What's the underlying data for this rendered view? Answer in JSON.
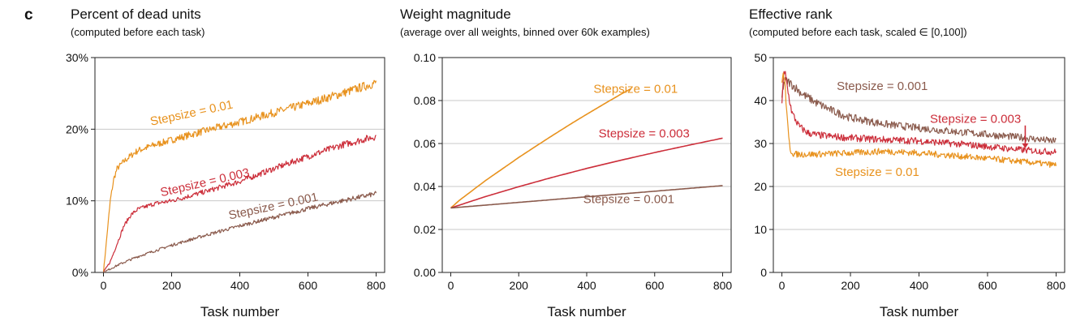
{
  "panel_letter": "c",
  "colors": {
    "stepsize_001": "#8a5a4c",
    "stepsize_003": "#cc2e3a",
    "stepsize_01": "#e8921e",
    "grid": "#c8c8c8",
    "axis": "#222222"
  },
  "chart_data": [
    {
      "type": "line",
      "title": "Percent of dead units",
      "subtitle": "(computed before each task)",
      "xlabel": "Task number",
      "ylabel": "",
      "xlim": [
        -25,
        825
      ],
      "ylim": [
        0,
        30
      ],
      "xticks": [
        0,
        200,
        400,
        600,
        800
      ],
      "yticks": [
        0,
        10,
        20,
        30
      ],
      "ytick_labels": [
        "0%",
        "10%",
        "20%",
        "30%"
      ],
      "grid": "horizontal",
      "noisy": true,
      "series": [
        {
          "name": "Stepsize = 0.01",
          "color_key": "stepsize_01",
          "label_pos": [
            140,
            20.5
          ],
          "label_rot": -12,
          "x": [
            0,
            10,
            20,
            30,
            40,
            60,
            80,
            100,
            150,
            200,
            300,
            400,
            500,
            600,
            700,
            800
          ],
          "values": [
            0,
            5,
            10,
            13,
            14.5,
            15.5,
            16.3,
            17,
            17.8,
            18.5,
            19.8,
            21,
            22.3,
            23.6,
            25,
            26.5
          ]
        },
        {
          "name": "Stepsize = 0.003",
          "color_key": "stepsize_003",
          "label_pos": [
            170,
            10.6
          ],
          "label_rot": -13,
          "x": [
            0,
            20,
            40,
            60,
            80,
            100,
            150,
            200,
            300,
            400,
            500,
            600,
            700,
            800
          ],
          "values": [
            0,
            1.5,
            4,
            6.5,
            8,
            8.8,
            9.6,
            10,
            11.3,
            12.7,
            14.5,
            16.2,
            17.8,
            19
          ]
        },
        {
          "name": "Stepsize = 0.001",
          "color_key": "stepsize_001",
          "label_pos": [
            370,
            7.4
          ],
          "label_rot": -12,
          "x": [
            0,
            20,
            50,
            100,
            150,
            200,
            300,
            400,
            500,
            600,
            700,
            800
          ],
          "values": [
            0,
            0.5,
            1.2,
            2.2,
            3,
            3.8,
            5.2,
            6.5,
            7.7,
            8.9,
            10,
            11
          ]
        }
      ]
    },
    {
      "type": "line",
      "title": "Weight magnitude",
      "subtitle": "(average over all weights, binned over 60k examples)",
      "xlabel": "Task number",
      "ylabel": "",
      "xlim": [
        -25,
        825
      ],
      "ylim": [
        0,
        0.1
      ],
      "xticks": [
        0,
        200,
        400,
        600,
        800
      ],
      "yticks": [
        0,
        0.02,
        0.04,
        0.06,
        0.08,
        0.1
      ],
      "ytick_labels": [
        "0.00",
        "0.02",
        "0.04",
        "0.06",
        "0.08",
        "0.10"
      ],
      "grid": "horizontal",
      "noisy": false,
      "series": [
        {
          "name": "Stepsize = 0.01",
          "color_key": "stepsize_01",
          "label_pos": [
            420,
            0.0835
          ],
          "label_rot": 0,
          "x": [
            0,
            25,
            50,
            100,
            150,
            200,
            250,
            300,
            350,
            400,
            450,
            500,
            530
          ],
          "values": [
            0.03,
            0.0335,
            0.0365,
            0.0425,
            0.048,
            0.0535,
            0.0587,
            0.0638,
            0.0688,
            0.0736,
            0.0783,
            0.0829,
            0.0855
          ]
        },
        {
          "name": "Stepsize = 0.003",
          "color_key": "stepsize_003",
          "label_pos": [
            435,
            0.0628
          ],
          "label_rot": 0,
          "x": [
            0,
            100,
            200,
            300,
            400,
            500,
            600,
            700,
            800
          ],
          "values": [
            0.03,
            0.0352,
            0.0399,
            0.0443,
            0.0484,
            0.0522,
            0.0558,
            0.0592,
            0.0625
          ]
        },
        {
          "name": "Stepsize = 0.001",
          "color_key": "stepsize_001",
          "label_pos": [
            390,
            0.0322
          ],
          "label_rot": 0,
          "x": [
            0,
            100,
            200,
            300,
            400,
            500,
            600,
            700,
            800
          ],
          "values": [
            0.03,
            0.0313,
            0.0326,
            0.0339,
            0.0352,
            0.0365,
            0.0378,
            0.0391,
            0.0404
          ]
        }
      ]
    },
    {
      "type": "line",
      "title": "Effective rank",
      "subtitle": "(computed before each task, scaled ∈ [0,100])",
      "xlabel": "Task number",
      "ylabel": "",
      "xlim": [
        -25,
        825
      ],
      "ylim": [
        0,
        50
      ],
      "xticks": [
        0,
        200,
        400,
        600,
        800
      ],
      "yticks": [
        0,
        10,
        20,
        30,
        40,
        50
      ],
      "ytick_labels": [
        "0",
        "10",
        "20",
        "30",
        "40",
        "50"
      ],
      "grid": "horizontal",
      "noisy": true,
      "arrow": {
        "color_key": "stepsize_003",
        "from": [
          710,
          34.2
        ],
        "to": [
          710,
          28.9
        ]
      },
      "series": [
        {
          "name": "Stepsize = 0.001",
          "color_key": "stepsize_001",
          "label_pos": [
            160,
            42.5
          ],
          "label_rot": 0,
          "x": [
            0,
            5,
            10,
            20,
            40,
            60,
            100,
            150,
            200,
            300,
            400,
            500,
            600,
            700,
            800
          ],
          "values": [
            40.5,
            44,
            44.5,
            44.3,
            43,
            41.5,
            39.5,
            37.5,
            36,
            34.5,
            33.6,
            32.8,
            32.1,
            31.4,
            30.5
          ]
        },
        {
          "name": "Stepsize = 0.003",
          "color_key": "stepsize_003",
          "label_pos": [
            432,
            34.8
          ],
          "label_rot": 0,
          "x": [
            0,
            5,
            10,
            20,
            30,
            50,
            75,
            100,
            150,
            200,
            300,
            400,
            500,
            600,
            700,
            800
          ],
          "values": [
            40,
            46,
            46,
            41,
            37,
            34,
            32.5,
            32,
            31.6,
            31.3,
            30.9,
            30.6,
            30,
            29.3,
            28.5,
            28
          ]
        },
        {
          "name": "Stepsize = 0.01",
          "color_key": "stepsize_01",
          "label_pos": [
            155,
            22.5
          ],
          "label_rot": 0,
          "x": [
            0,
            5,
            10,
            15,
            20,
            25,
            35,
            50,
            100,
            200,
            300,
            400,
            500,
            600,
            700,
            800
          ],
          "values": [
            45,
            46,
            43,
            36,
            31,
            28.5,
            27.5,
            27.5,
            27.5,
            27.8,
            28.2,
            27.8,
            27.2,
            26.5,
            25.8,
            25
          ]
        }
      ]
    }
  ]
}
